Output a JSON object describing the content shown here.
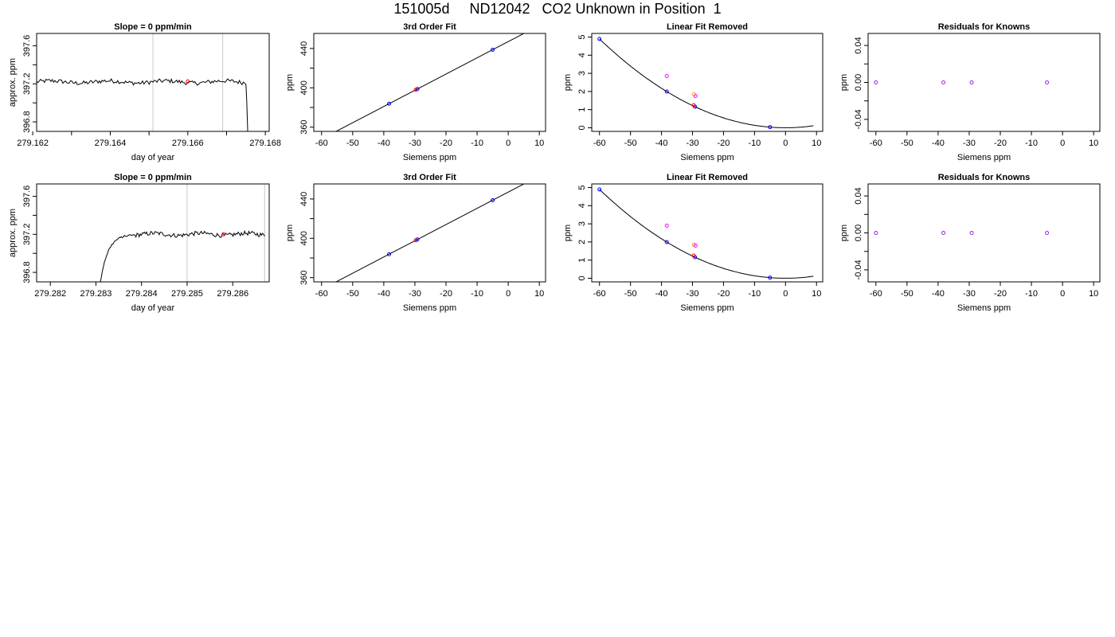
{
  "title": "151005d     ND12042   CO2 Unknown in Position  1",
  "colors": {
    "axis": "#000000",
    "line": "#000000",
    "vline": "#c8c8c8",
    "known": "#0000ff",
    "unknown": "#ff0000",
    "alt1": "#ff00ff",
    "alt2": "#ffa500",
    "resid": "#a020f0"
  },
  "chart_data": [
    {
      "type": "line",
      "title": "Slope =  0  ppm/min",
      "xlabel": "day of year",
      "ylabel": "approx. ppm",
      "xlim": [
        279.1621,
        279.1681
      ],
      "ylim": [
        396.7,
        397.73
      ],
      "xticks": [
        279.162,
        279.163,
        279.164,
        279.165,
        279.166,
        279.167,
        279.168
      ],
      "xtick_labels": [
        "279.162",
        "",
        "279.164",
        "",
        "279.166",
        "",
        "279.168"
      ],
      "yticks": [
        396.8,
        397.0,
        397.2,
        397.4,
        397.6
      ],
      "ytick_labels": [
        "396.8",
        "",
        "397.2",
        "",
        "397.6"
      ],
      "vlines": [
        279.1651,
        279.1669
      ],
      "trace": {
        "start": 279.1621,
        "end": 279.1675,
        "level": 397.22,
        "ramp_up": null,
        "drop_at": 279.16755
      },
      "marker": {
        "x": 279.166,
        "y": 397.225
      }
    },
    {
      "type": "line",
      "title": "3rd Order Fit",
      "xlabel": "Siemens ppm",
      "ylabel": "ppm",
      "xlim": [
        -62.5,
        12
      ],
      "ylim": [
        355.7,
        455.3
      ],
      "xticks": [
        -60,
        -50,
        -40,
        -30,
        -20,
        -10,
        0,
        10
      ],
      "xtick_labels": [
        "-60",
        "-50",
        "-40",
        "-30",
        "-20",
        "-10",
        "0",
        "10"
      ],
      "yticks": [
        360,
        380,
        400,
        420,
        440
      ],
      "ytick_labels": [
        "360",
        "",
        "400",
        "",
        "440"
      ],
      "fit": {
        "type": "linear",
        "slope": 1.65,
        "intercept": 447,
        "x_range": [
          -60,
          9
        ]
      },
      "known_x": [
        -60.0,
        -38.3,
        -29.2,
        -5.0
      ],
      "unknown_x": [
        -29.7
      ]
    },
    {
      "type": "scatter",
      "title": "Linear Fit Removed",
      "xlabel": "Siemens ppm",
      "ylabel": "ppm",
      "xlim": [
        -62.5,
        12
      ],
      "ylim": [
        -0.2,
        5.2
      ],
      "xticks": [
        -60,
        -50,
        -40,
        -30,
        -20,
        -10,
        0,
        10
      ],
      "xtick_labels": [
        "-60",
        "-50",
        "-40",
        "-30",
        "-20",
        "-10",
        "0",
        "10"
      ],
      "yticks": [
        0,
        1,
        2,
        3,
        4,
        5
      ],
      "ytick_labels": [
        "0",
        "1",
        "2",
        "3",
        "4",
        "5"
      ],
      "curve": {
        "type": "quadratic",
        "a": 0.00136,
        "vertex_x": 0,
        "x_range": [
          -60,
          9
        ]
      },
      "known_x": [
        -60.0,
        -38.3,
        -29.2,
        -5.0
      ],
      "unknown": {
        "x": -29.6,
        "y": 1.25
      },
      "extras": [
        {
          "x": -38.3,
          "y": 2.85,
          "color": "alt1"
        },
        {
          "x": -29.5,
          "y": 1.85,
          "color": "alt2"
        },
        {
          "x": -29.0,
          "y": 1.75,
          "color": "alt1"
        }
      ]
    },
    {
      "type": "scatter",
      "title": "Residuals for Knowns",
      "xlabel": "Siemens ppm",
      "ylabel": "ppm",
      "xlim": [
        -62.5,
        12
      ],
      "ylim": [
        -0.053,
        0.053
      ],
      "xticks": [
        -60,
        -50,
        -40,
        -30,
        -20,
        -10,
        0,
        10
      ],
      "xtick_labels": [
        "-60",
        "-50",
        "-40",
        "-30",
        "-20",
        "-10",
        "0",
        "10"
      ],
      "yticks": [
        -0.04,
        -0.02,
        0.0,
        0.02,
        0.04
      ],
      "ytick_labels": [
        "-0.04",
        "",
        "0.00",
        "",
        "0.04"
      ],
      "points": [
        {
          "x": -60.0,
          "y": 0
        },
        {
          "x": -38.3,
          "y": 0
        },
        {
          "x": -29.2,
          "y": 0
        },
        {
          "x": -5.0,
          "y": 0
        }
      ]
    },
    {
      "type": "line",
      "title": "Slope =  0  ppm/min",
      "xlabel": "day of year",
      "ylabel": "approx. ppm",
      "xlim": [
        279.2817,
        279.2868
      ],
      "ylim": [
        396.7,
        397.73
      ],
      "xticks": [
        279.282,
        279.283,
        279.284,
        279.285,
        279.286
      ],
      "xtick_labels": [
        "279.282",
        "279.283",
        "279.284",
        "279.285",
        "279.286"
      ],
      "yticks": [
        396.8,
        397.0,
        397.2,
        397.4,
        397.6
      ],
      "ytick_labels": [
        "396.8",
        "",
        "397.2",
        "",
        "397.6"
      ],
      "vlines": [
        279.285,
        279.2867
      ],
      "trace": {
        "start": 279.283,
        "end": 279.2867,
        "level": 397.2,
        "ramp_up": true,
        "drop_at": null
      },
      "marker": {
        "x": 279.2858,
        "y": 397.2
      }
    },
    {
      "type": "line",
      "title": "3rd Order Fit",
      "xlabel": "Siemens ppm",
      "ylabel": "ppm",
      "xlim": [
        -62.5,
        12
      ],
      "ylim": [
        355.7,
        455.3
      ],
      "xticks": [
        -60,
        -50,
        -40,
        -30,
        -20,
        -10,
        0,
        10
      ],
      "xtick_labels": [
        "-60",
        "-50",
        "-40",
        "-30",
        "-20",
        "-10",
        "0",
        "10"
      ],
      "yticks": [
        360,
        380,
        400,
        420,
        440
      ],
      "ytick_labels": [
        "360",
        "",
        "400",
        "",
        "440"
      ],
      "fit": {
        "type": "linear",
        "slope": 1.65,
        "intercept": 447,
        "x_range": [
          -60,
          9
        ]
      },
      "known_x": [
        -60.0,
        -38.3,
        -29.2,
        -5.0
      ],
      "unknown_x": [
        -29.7
      ]
    },
    {
      "type": "scatter",
      "title": "Linear Fit Removed",
      "xlabel": "Siemens ppm",
      "ylabel": "ppm",
      "xlim": [
        -62.5,
        12
      ],
      "ylim": [
        -0.2,
        5.2
      ],
      "xticks": [
        -60,
        -50,
        -40,
        -30,
        -20,
        -10,
        0,
        10
      ],
      "xtick_labels": [
        "-60",
        "-50",
        "-40",
        "-30",
        "-20",
        "-10",
        "0",
        "10"
      ],
      "yticks": [
        0,
        1,
        2,
        3,
        4,
        5
      ],
      "ytick_labels": [
        "0",
        "1",
        "2",
        "3",
        "4",
        "5"
      ],
      "curve": {
        "type": "quadratic",
        "a": 0.00136,
        "vertex_x": 0,
        "x_range": [
          -60,
          9
        ]
      },
      "known_x": [
        -60.0,
        -38.3,
        -29.2,
        -5.0
      ],
      "unknown": {
        "x": -29.6,
        "y": 1.25
      },
      "extras": [
        {
          "x": -38.3,
          "y": 2.9,
          "color": "alt1"
        },
        {
          "x": -29.5,
          "y": 1.85,
          "color": "alt2"
        },
        {
          "x": -29.0,
          "y": 1.8,
          "color": "alt1"
        }
      ]
    },
    {
      "type": "scatter",
      "title": "Residuals for Knowns",
      "xlabel": "Siemens ppm",
      "ylabel": "ppm",
      "xlim": [
        -62.5,
        12
      ],
      "ylim": [
        -0.053,
        0.053
      ],
      "xticks": [
        -60,
        -50,
        -40,
        -30,
        -20,
        -10,
        0,
        10
      ],
      "xtick_labels": [
        "-60",
        "-50",
        "-40",
        "-30",
        "-20",
        "-10",
        "0",
        "10"
      ],
      "yticks": [
        -0.04,
        -0.02,
        0.0,
        0.02,
        0.04
      ],
      "ytick_labels": [
        "-0.04",
        "",
        "0.00",
        "",
        "0.04"
      ],
      "points": [
        {
          "x": -60.0,
          "y": 0
        },
        {
          "x": -38.3,
          "y": 0
        },
        {
          "x": -29.2,
          "y": 0
        },
        {
          "x": -5.0,
          "y": 0
        }
      ]
    }
  ]
}
